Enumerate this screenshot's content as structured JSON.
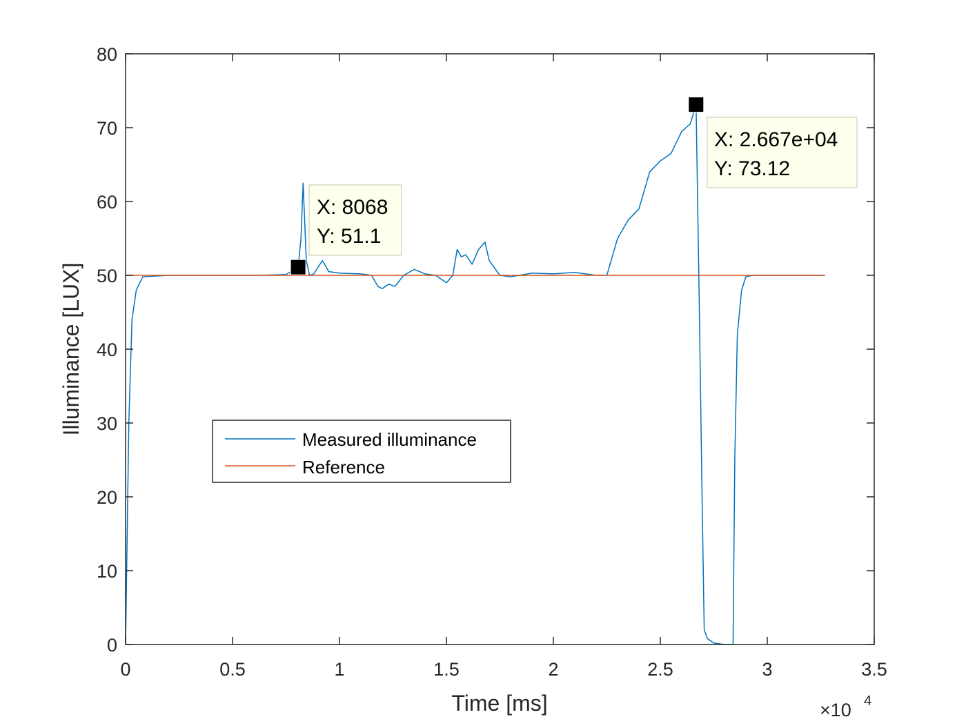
{
  "chart_data": {
    "type": "line",
    "title": "",
    "xlabel": "Time [ms]",
    "ylabel": "Illuminance [LUX]",
    "x_exponent_label": "×10",
    "x_exponent": "4",
    "xlim": [
      0,
      35000
    ],
    "ylim": [
      0,
      80
    ],
    "x_ticks": [
      0,
      5000,
      10000,
      15000,
      20000,
      25000,
      30000,
      35000
    ],
    "x_tick_labels": [
      "0",
      "0.5",
      "1",
      "1.5",
      "2",
      "2.5",
      "3",
      "3.5"
    ],
    "y_ticks": [
      0,
      10,
      20,
      30,
      40,
      50,
      60,
      70,
      80
    ],
    "y_tick_labels": [
      "0",
      "10",
      "20",
      "30",
      "40",
      "50",
      "60",
      "70",
      "80"
    ],
    "grid": false,
    "legend_position": "center-left",
    "series": [
      {
        "name": "Measured illuminance",
        "color": "#0072BD",
        "x": [
          0,
          150,
          300,
          500,
          800,
          2000,
          4000,
          6000,
          7500,
          8068,
          8200,
          8300,
          8450,
          8600,
          8800,
          9200,
          9500,
          10000,
          11000,
          11500,
          11800,
          12000,
          12300,
          12600,
          13000,
          13500,
          14000,
          14500,
          15000,
          15300,
          15500,
          15700,
          15900,
          16200,
          16500,
          16800,
          17000,
          17500,
          18000,
          19000,
          20000,
          21000,
          22000,
          22500,
          23000,
          23500,
          24000,
          24500,
          25000,
          25500,
          26000,
          26400,
          26670,
          26800,
          26950,
          27050,
          27200,
          27500,
          28000,
          28400,
          28480,
          28600,
          28800,
          29000,
          29300,
          30000,
          31000,
          32000,
          32700
        ],
        "values": [
          0,
          30,
          44,
          48,
          49.8,
          50,
          50,
          50,
          50.1,
          51.1,
          55,
          62.5,
          52,
          50,
          50.2,
          52,
          50.5,
          50.3,
          50.2,
          50,
          48.5,
          48.2,
          48.8,
          48.5,
          50,
          50.8,
          50.2,
          50,
          49,
          50,
          53.5,
          52.5,
          52.8,
          51.5,
          53.5,
          54.5,
          52,
          50,
          49.8,
          50.3,
          50.2,
          50.4,
          50,
          50,
          55,
          57.5,
          59,
          64,
          65.5,
          66.5,
          69.5,
          70.5,
          73.12,
          50,
          20,
          2,
          0.8,
          0.2,
          0,
          0,
          25,
          42,
          48,
          49.8,
          50,
          50,
          50,
          50,
          50
        ]
      },
      {
        "name": "Reference",
        "color": "#D95319",
        "x": [
          0,
          32700
        ],
        "values": [
          50,
          50
        ]
      }
    ],
    "datatips": [
      {
        "x": 8068,
        "y": 51.1,
        "x_text": "X: 8068",
        "y_text": "Y: 51.1"
      },
      {
        "x": 26670,
        "y": 73.12,
        "x_text": "X: 2.667e+04",
        "y_text": "Y: 73.12"
      }
    ]
  }
}
